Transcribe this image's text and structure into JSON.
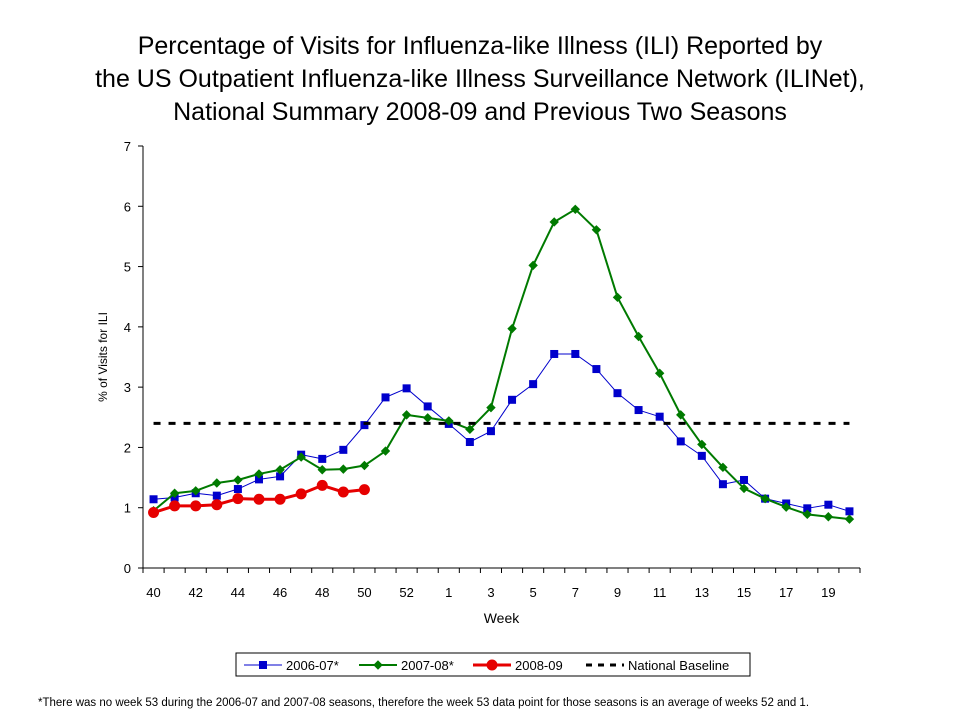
{
  "chart_data": {
    "type": "line",
    "title": [
      "Percentage of Visits for Influenza-like Illness (ILI) Reported by",
      "the US Outpatient Influenza-like Illness Surveillance Network (ILINet),",
      "National Summary 2008-09 and Previous Two Seasons"
    ],
    "xlabel": "Week",
    "ylabel": "% of Visits for ILI",
    "ylim": [
      0,
      7
    ],
    "yticks": [
      0,
      1,
      2,
      3,
      4,
      5,
      6,
      7
    ],
    "weeks": [
      40,
      41,
      42,
      43,
      44,
      45,
      46,
      47,
      48,
      49,
      50,
      51,
      52,
      53,
      1,
      2,
      3,
      4,
      5,
      6,
      7,
      8,
      9,
      10,
      11,
      12,
      13,
      14,
      15,
      16,
      17,
      18,
      19,
      20
    ],
    "xtick_labels": [
      "40",
      "42",
      "44",
      "46",
      "48",
      "50",
      "52",
      "1",
      "3",
      "5",
      "7",
      "9",
      "11",
      "13",
      "15",
      "17",
      "19"
    ],
    "grid": false,
    "legend_position": "bottom",
    "series": [
      {
        "name": "2006-07*",
        "color": "#0000cc",
        "marker": "square",
        "values": [
          1.14,
          1.17,
          1.24,
          1.2,
          1.31,
          1.47,
          1.52,
          1.88,
          1.81,
          1.96,
          2.37,
          2.83,
          2.98,
          2.68,
          2.39,
          2.09,
          2.27,
          2.79,
          3.05,
          3.55,
          3.55,
          3.3,
          2.9,
          2.62,
          2.51,
          2.1,
          1.86,
          1.39,
          1.46,
          1.15,
          1.07,
          0.99,
          1.05,
          0.94
        ]
      },
      {
        "name": "2007-08*",
        "color": "#007a00",
        "marker": "diamond",
        "values": [
          0.95,
          1.24,
          1.28,
          1.41,
          1.46,
          1.56,
          1.63,
          1.84,
          1.63,
          1.64,
          1.7,
          1.94,
          2.54,
          2.49,
          2.44,
          2.3,
          2.66,
          3.97,
          5.02,
          5.74,
          5.95,
          5.61,
          4.49,
          3.84,
          3.23,
          2.54,
          2.05,
          1.67,
          1.32,
          1.15,
          1.01,
          0.89,
          0.85,
          0.81
        ]
      },
      {
        "name": "2008-09",
        "color": "#e60000",
        "marker": "circle",
        "values": [
          0.92,
          1.03,
          1.03,
          1.05,
          1.15,
          1.14,
          1.14,
          1.23,
          1.37,
          1.26,
          1.3
        ]
      },
      {
        "name": "National Baseline",
        "color": "#000000",
        "style": "dashed",
        "value": 2.4
      }
    ]
  },
  "footnote": "*There was no week 53 during the 2006-07 and 2007-08 seasons, therefore the week 53 data point for those seasons is an average of weeks 52 and 1."
}
